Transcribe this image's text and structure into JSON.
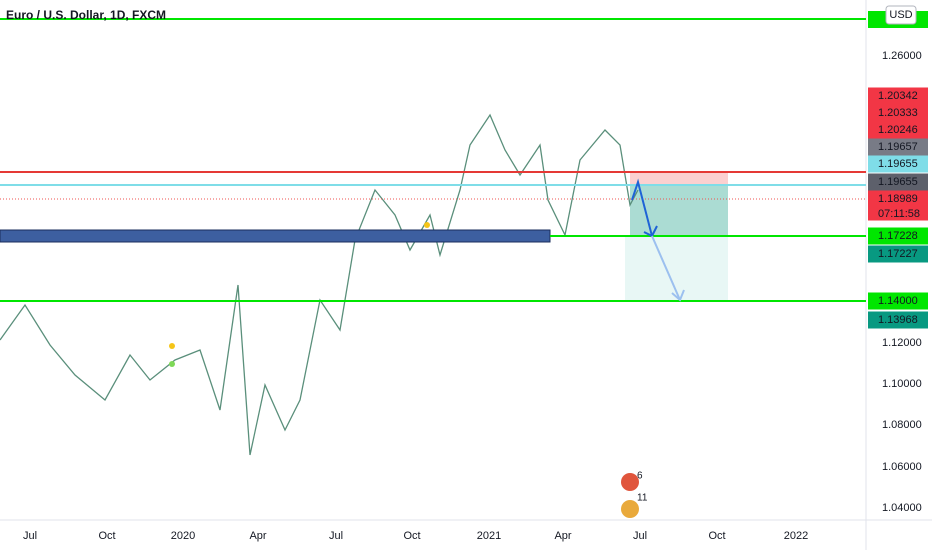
{
  "header": {
    "title": "Euro / U.S. Dollar, 1D, FXCM",
    "currency": "USD"
  },
  "price_axis": {
    "ticks": [
      "1.26000",
      "1.12000",
      "1.10000",
      "1.08000",
      "1.06000",
      "1.04000"
    ],
    "labels": [
      "1.20342",
      "1.20333",
      "1.20246",
      "1.19657",
      "1.19655",
      "1.19655",
      "1.18989",
      "1.17228",
      "1.17227",
      "1.14000",
      "1.13968"
    ],
    "countdown": "07:11:58"
  },
  "time_axis": {
    "labels": [
      "Jul",
      "Oct",
      "2020",
      "Apr",
      "Jul",
      "Oct",
      "2021",
      "Apr",
      "Jul",
      "Oct",
      "2022"
    ]
  },
  "events": [
    "6",
    "11"
  ]
}
